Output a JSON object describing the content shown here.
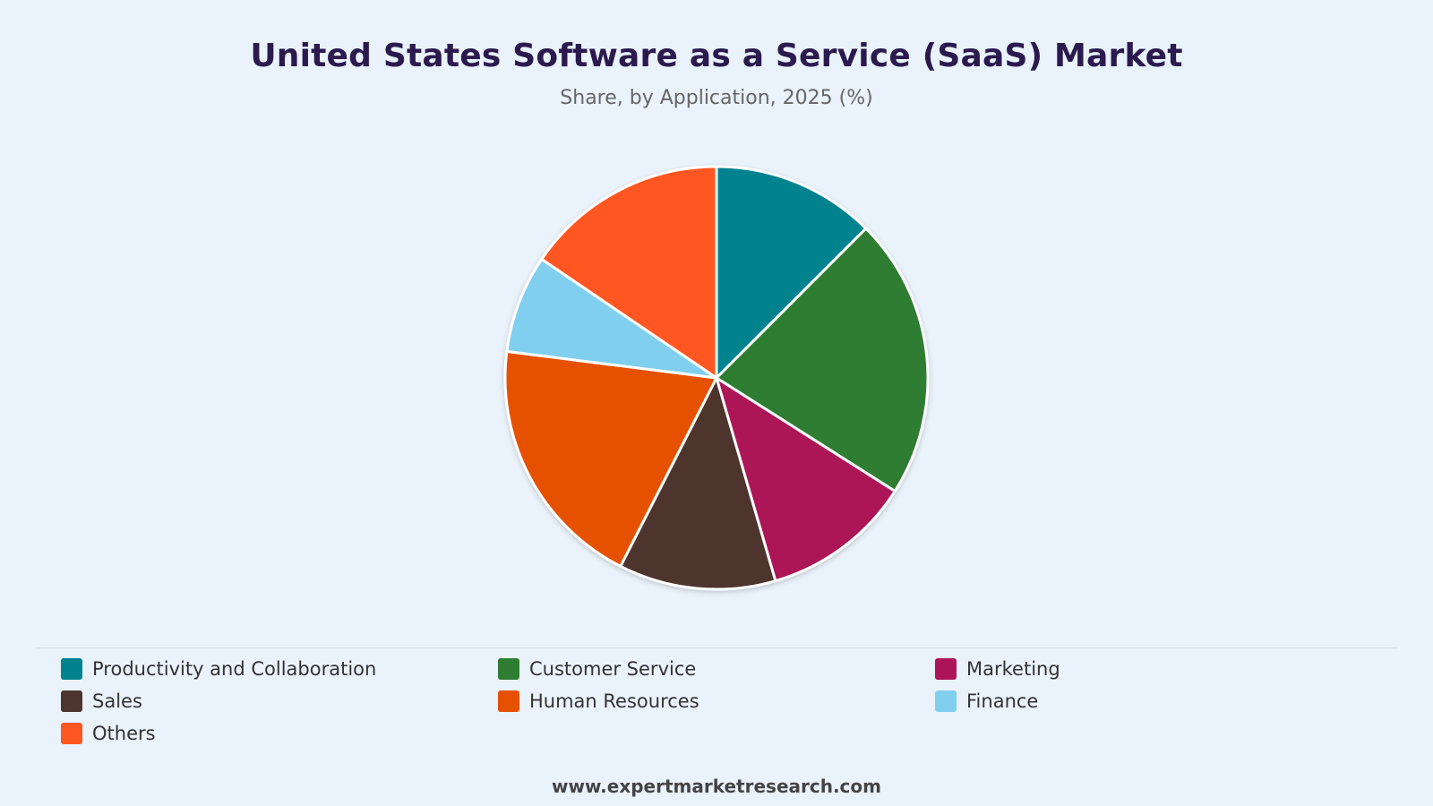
{
  "header": {
    "title": "United States Software as a Service (SaaS) Market",
    "subtitle": "Share, by Application, 2025 (%)"
  },
  "footer": {
    "source": "www.expertmarketresearch.com"
  },
  "chart_data": {
    "type": "pie",
    "title": "United States Software as a Service (SaaS) Market",
    "subtitle": "Share, by Application, 2025 (%)",
    "legend_position": "bottom",
    "categories": [
      "Productivity and Collaboration",
      "Customer Service",
      "Marketing",
      "Sales",
      "Human Resources",
      "Finance",
      "Others"
    ],
    "values": [
      12.5,
      21.5,
      11.5,
      12,
      19.5,
      7.5,
      15.5
    ],
    "colors": [
      "#00838f",
      "#2e7d32",
      "#ad1457",
      "#4e342e",
      "#e65100",
      "#81cfef",
      "#ff5722"
    ],
    "start_angle_deg": 0,
    "direction": "clockwise"
  }
}
